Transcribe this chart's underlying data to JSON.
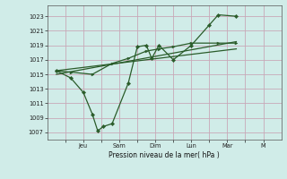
{
  "bg_color": "#d0ece8",
  "grid_color": "#c8a8b8",
  "line_color": "#2a5c2a",
  "xlabel": "Pression niveau de la mer( hPa )",
  "ylim": [
    1006.0,
    1024.5
  ],
  "yticks": [
    1007,
    1009,
    1011,
    1013,
    1015,
    1017,
    1019,
    1021,
    1023
  ],
  "xtick_positions": [
    1.0,
    2.0,
    3.0,
    4.0,
    5.0,
    6.0,
    7.0,
    8.0,
    9.0,
    10.0,
    11.0,
    12.0
  ],
  "xtick_labels": [
    "",
    "Jeu",
    "",
    "Sam",
    "",
    "Dim",
    "",
    "Lun",
    "",
    "Mar",
    "",
    "M"
  ],
  "xlim": [
    0,
    13
  ],
  "zigzag_x": [
    0.5,
    1.3,
    2.0,
    2.5,
    2.8,
    3.1,
    3.6,
    4.5,
    5.0,
    5.5,
    5.8,
    6.2,
    7.0,
    8.0,
    9.0,
    9.5,
    10.5
  ],
  "zigzag_y": [
    1015.5,
    1014.5,
    1012.5,
    1009.5,
    1007.2,
    1007.8,
    1008.2,
    1013.8,
    1018.8,
    1019.0,
    1017.2,
    1019.0,
    1017.0,
    1019.0,
    1021.8,
    1023.2,
    1023.0
  ],
  "smooth_x": [
    0.5,
    1.3,
    2.5,
    3.6,
    4.5,
    5.5,
    6.2,
    7.0,
    8.0,
    9.5,
    10.5
  ],
  "smooth_y": [
    1015.5,
    1015.3,
    1015.0,
    1016.5,
    1017.2,
    1018.2,
    1018.5,
    1018.8,
    1019.3,
    1019.3,
    1019.3
  ],
  "trend1_x": [
    0.5,
    10.5
  ],
  "trend1_y": [
    1015.5,
    1018.5
  ],
  "trend2_x": [
    0.5,
    10.5
  ],
  "trend2_y": [
    1015.0,
    1019.5
  ]
}
